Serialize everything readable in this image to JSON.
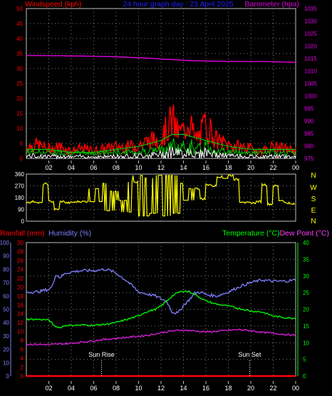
{
  "header": {
    "left_title": "Windspeed (kph)",
    "center_title": "24 hour graph day : 23 April 2025",
    "right_title": "Barometer (hpa)"
  },
  "direction_letters": [
    "N",
    "W",
    "S",
    "E",
    "N"
  ],
  "middle_header": {
    "rainfall": "Rainfall (mm)",
    "humidity": "Humidity (%)",
    "temperature": "Temperature (°C)",
    "dewpoint": "Dew Point (°C)"
  },
  "sun": {
    "rise": "Sun Rise",
    "set": "Sun Set",
    "rise_hour": 6.7,
    "set_hour": 19.9
  },
  "colors": {
    "windspeed": "#ff0000",
    "gust_avg": "#00c800",
    "calm": "#ffffff",
    "barometer": "#e000e0",
    "direction": "#ffff00",
    "humidity": "#8080ff",
    "temperature": "#00ff00",
    "dewpoint": "#e020e0",
    "rainfall": "#ff0000",
    "grid": "#808080",
    "left_axis": "#ff0000",
    "right_axis_baro": "#e000e0",
    "temp_axis": "#00ff00",
    "humidity_axis": "#8080ff",
    "rain_axis": "#ff0000",
    "title_center": "#2020ff"
  },
  "chart_data": [
    {
      "type": "line",
      "title": "24 hour graph day : 23 April 2025",
      "xlabel": "",
      "ylabel": "Windspeed (kph)",
      "y2label": "Barometer (hpa)",
      "x_ticks": [
        "02",
        "04",
        "06",
        "08",
        "10",
        "12",
        "14",
        "16",
        "18",
        "20",
        "22",
        "00"
      ],
      "ylim": [
        0,
        50
      ],
      "y_ticks": [
        0,
        5,
        10,
        15,
        20,
        25,
        30,
        35,
        40,
        45,
        50
      ],
      "y2lim": [
        975,
        1035
      ],
      "y2_ticks": [
        975,
        980,
        985,
        990,
        995,
        1000,
        1005,
        1010,
        1015,
        1020,
        1025,
        1030,
        1035
      ],
      "grid": true,
      "series": [
        {
          "name": "Barometer (hpa)",
          "axis": "right",
          "x": [
            0,
            1,
            2,
            3,
            4,
            5,
            6,
            7,
            8,
            9,
            10,
            11,
            12,
            13,
            14,
            15,
            16,
            17,
            18,
            19,
            20,
            21,
            22,
            23,
            24
          ],
          "y": [
            1016.2,
            1016.2,
            1016.1,
            1016.1,
            1016.0,
            1016.0,
            1015.9,
            1015.8,
            1015.7,
            1015.5,
            1015.3,
            1015.1,
            1014.8,
            1014.6,
            1014.3,
            1014.1,
            1014.0,
            1013.9,
            1013.9,
            1013.8,
            1013.8,
            1013.8,
            1013.7,
            1013.6,
            1013.4
          ]
        },
        {
          "name": "Windspeed (kph)",
          "axis": "left",
          "x": [
            0,
            1,
            2,
            3,
            4,
            5,
            6,
            7,
            8,
            9,
            10,
            11,
            12,
            12.5,
            13,
            13.5,
            14,
            14.5,
            15,
            15.5,
            16,
            17,
            18,
            19,
            20,
            21,
            22,
            23,
            24
          ],
          "y": [
            6,
            7,
            5,
            6,
            4,
            5,
            4,
            5,
            6,
            6,
            7,
            9,
            10,
            15,
            20,
            13,
            14,
            21,
            10,
            12,
            18,
            9,
            7,
            6,
            5,
            4,
            6,
            5,
            4
          ]
        },
        {
          "name": "Gust average",
          "axis": "left",
          "x": [
            0,
            2,
            4,
            6,
            8,
            10,
            12,
            13,
            14,
            15,
            16,
            18,
            20,
            22,
            24
          ],
          "y": [
            3,
            3,
            2,
            2,
            3,
            4,
            6,
            8,
            8,
            7,
            6,
            4,
            3,
            3,
            3
          ]
        }
      ]
    },
    {
      "type": "line",
      "ylabel": "Wind direction",
      "ylim": [
        0,
        360
      ],
      "y_ticks": [
        0,
        90,
        180,
        270,
        360
      ],
      "x_ticks": [],
      "series": [
        {
          "name": "Wind direction",
          "x": [
            0,
            0.5,
            1,
            1.5,
            2,
            2.5,
            3,
            3.5,
            4,
            4.5,
            5,
            5.5,
            6,
            6.5,
            7,
            7.5,
            8,
            8.5,
            9,
            9.5,
            10,
            10.5,
            11,
            11.5,
            12,
            12.5,
            13,
            13.5,
            14,
            14.5,
            15,
            15.5,
            16,
            16.5,
            17,
            17.5,
            18,
            18.5,
            19,
            19.5,
            20,
            20.5,
            21,
            21.5,
            22,
            22.5,
            23,
            23.5,
            24
          ],
          "y": [
            145,
            150,
            140,
            285,
            150,
            90,
            150,
            140,
            145,
            150,
            150,
            150,
            250,
            150,
            290,
            80,
            230,
            160,
            70,
            300,
            350,
            40,
            330,
            60,
            350,
            40,
            350,
            60,
            290,
            160,
            250,
            170,
            280,
            270,
            340,
            330,
            350,
            320,
            150,
            140,
            140,
            150,
            280,
            130,
            270,
            160,
            140,
            130,
            140
          ]
        }
      ]
    },
    {
      "type": "line",
      "xlabel": "",
      "ylabel": "Rainfall (mm) / Humidity (%)",
      "y2label": "Temperature (°C) / Dew Point (°C)",
      "x_ticks": [
        "02",
        "04",
        "06",
        "08",
        "10",
        "12",
        "14",
        "16",
        "18",
        "20",
        "22",
        "00"
      ],
      "humidity_ticks": [
        0,
        10,
        20,
        30,
        40,
        50,
        60,
        70,
        80,
        90,
        100
      ],
      "rain_ticks": [
        0,
        2,
        4,
        6,
        8,
        10,
        12,
        14,
        16,
        18,
        20,
        22,
        24,
        26,
        28,
        30
      ],
      "temp_ticks": [
        0,
        5,
        10,
        15,
        20,
        25,
        30,
        35,
        40
      ],
      "grid": true,
      "series": [
        {
          "name": "Humidity (%)",
          "axis": "humidity",
          "range": [
            0,
            100
          ],
          "x": [
            0,
            1,
            2,
            2.3,
            2.6,
            3,
            3.5,
            4,
            5,
            6,
            7,
            7.5,
            8,
            8.5,
            9,
            10,
            11,
            11.5,
            12,
            12.5,
            13,
            13.5,
            14,
            14.5,
            15,
            15.5,
            16,
            17,
            18,
            19,
            20,
            21,
            22,
            23,
            24
          ],
          "y": [
            63,
            63,
            65,
            67,
            76,
            74,
            77,
            78,
            79,
            79,
            80,
            79,
            77,
            74,
            71,
            63,
            61,
            60,
            58,
            56,
            48,
            47,
            53,
            57,
            62,
            63,
            61,
            60,
            63,
            67,
            70,
            72,
            71,
            71,
            72
          ]
        },
        {
          "name": "Temperature (°C)",
          "axis": "temperature",
          "range": [
            0,
            40
          ],
          "x": [
            0,
            1,
            2,
            2.5,
            3,
            3.5,
            4,
            5,
            6,
            7,
            8,
            9,
            10,
            10.5,
            11,
            11.5,
            12,
            12.5,
            13,
            13.5,
            14,
            14.5,
            15,
            15.5,
            16,
            17,
            18,
            19,
            20,
            21,
            22,
            23,
            24
          ],
          "y": [
            17,
            17,
            16.8,
            15,
            14.5,
            15.2,
            15.2,
            15.3,
            15.2,
            15.5,
            16,
            17,
            18,
            19,
            19.5,
            20,
            21,
            22.5,
            24,
            25,
            25.5,
            25.3,
            24.5,
            23.5,
            22.5,
            21.5,
            21,
            20.2,
            19.5,
            19.2,
            18,
            17.5,
            17.3
          ]
        },
        {
          "name": "Dew Point (°C)",
          "axis": "temperature",
          "range": [
            0,
            40
          ],
          "x": [
            0,
            1,
            2,
            3,
            4,
            5,
            6,
            7,
            8,
            9,
            10,
            11,
            12,
            13,
            14,
            15,
            16,
            17,
            18,
            19,
            20,
            21,
            22,
            23,
            24
          ],
          "y": [
            9.5,
            9.5,
            9.4,
            9.6,
            9.8,
            10.2,
            10.6,
            11.0,
            11.3,
            11.6,
            11.9,
            12.3,
            13.0,
            13.5,
            13.8,
            13.5,
            13.2,
            13.4,
            13.7,
            13.9,
            13.6,
            13.1,
            12.8,
            12.5,
            12.2
          ]
        },
        {
          "name": "Rainfall (mm)",
          "axis": "rain",
          "range": [
            0,
            30
          ],
          "x": [
            0,
            24
          ],
          "y": [
            0,
            0
          ]
        }
      ]
    }
  ]
}
